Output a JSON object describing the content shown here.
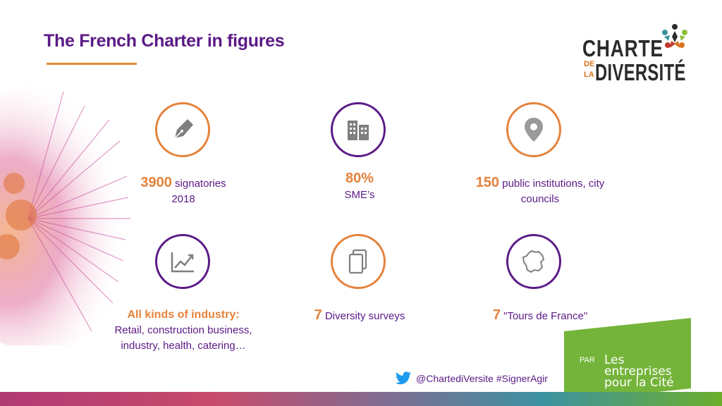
{
  "header": {
    "title": "The French Charter in figures"
  },
  "logo": {
    "line1": "CHARTE",
    "line2a": "DE",
    "line2b": "LA",
    "line3": "DIVERSITÉ"
  },
  "stats": [
    {
      "number": "3900",
      "text": " signatories",
      "sub": "2018"
    },
    {
      "number": "80%",
      "text": "SME’s"
    },
    {
      "number": "150",
      "text": " public institutions, city",
      "sub": "councils"
    },
    {
      "number": "All kinds of industry:",
      "line2": "Retail, construction business,",
      "line3": "industry, health, catering…"
    },
    {
      "number": "7",
      "text": " Diversity  surveys"
    },
    {
      "number": "7",
      "text": " \"Tours de France\""
    }
  ],
  "footer": {
    "twitter": "@ChartediVersite #SignerAgir",
    "par": "PAR",
    "brand_line1": "Les",
    "brand_line2": "entreprises",
    "brand_line3": "pour la Cité"
  },
  "colors": {
    "purple": "#5b1a86",
    "orange": "#e5823a",
    "green": "#74b43a"
  }
}
